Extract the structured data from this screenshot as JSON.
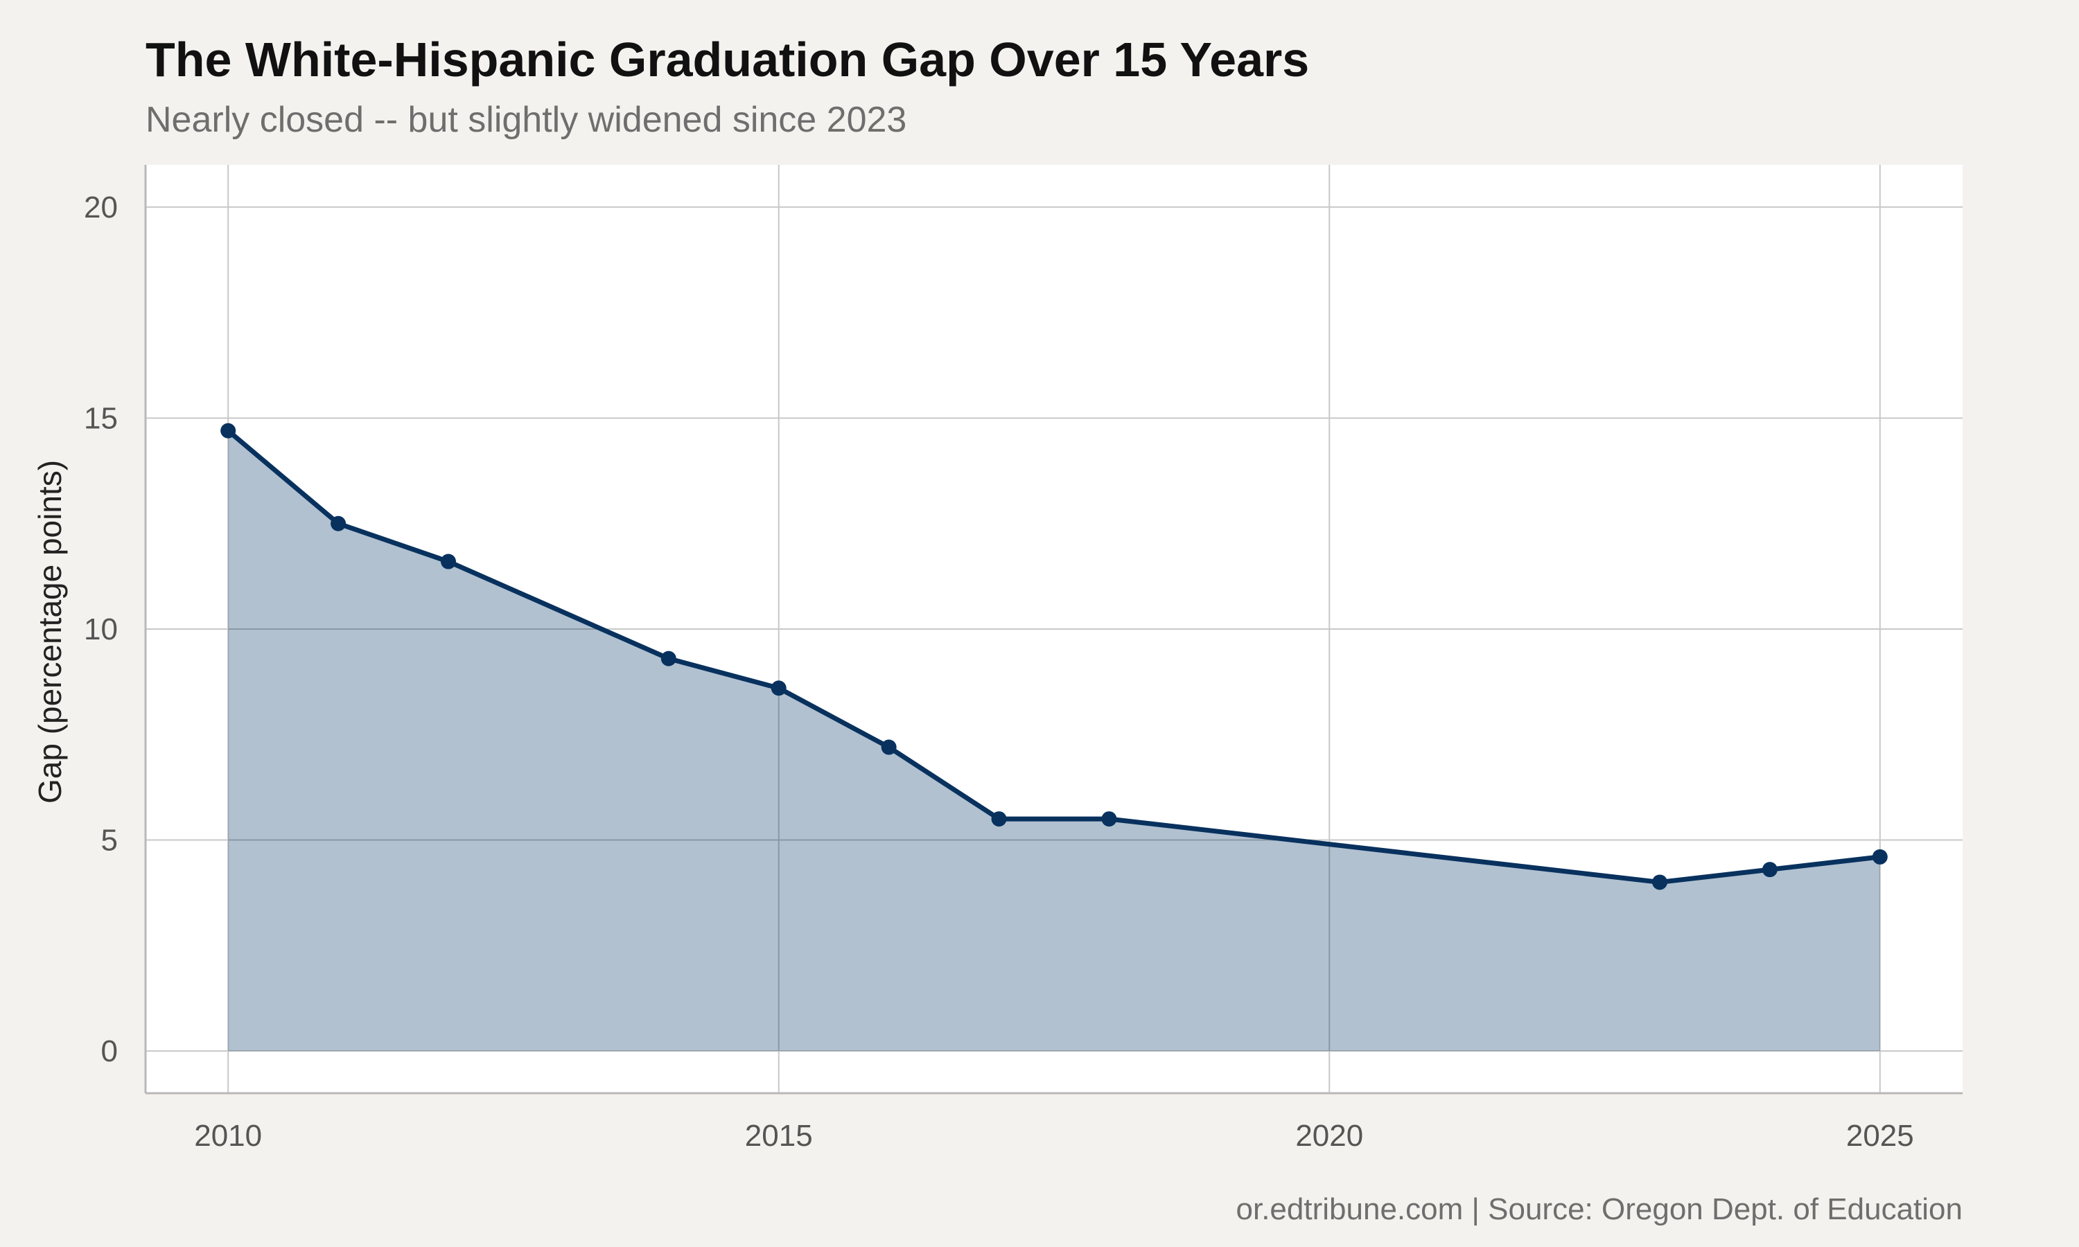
{
  "chart_data": {
    "type": "area",
    "title": "The White-Hispanic Graduation Gap Over 15 Years",
    "subtitle": "Nearly closed -- but slightly widened since 2023",
    "xlabel": "",
    "ylabel": "Gap (percentage points)",
    "caption": "or.edtribune.com | Source: Oregon Dept. of Education",
    "x": [
      2010,
      2011,
      2012,
      2014,
      2015,
      2016,
      2017,
      2018,
      2023,
      2024,
      2025
    ],
    "series": [
      {
        "values": [
          14.7,
          12.5,
          11.6,
          9.3,
          8.6,
          7.2,
          5.5,
          5.5,
          4.0,
          4.3,
          4.6
        ],
        "color": "#08315e",
        "fill_color": "#b1c1d0"
      }
    ],
    "xlim": [
      2009.25,
      2025.75
    ],
    "ylim": [
      -1,
      21
    ],
    "xticks": [
      2010,
      2015,
      2020,
      2025
    ],
    "yticks": [
      0,
      5,
      10,
      15,
      20
    ],
    "xtick_labels": [
      "2010",
      "2015",
      "2020",
      "2025"
    ],
    "ytick_labels": [
      "0",
      "5",
      "10",
      "15",
      "20"
    ],
    "grid": true,
    "legend": "none"
  },
  "colors": {
    "background": "#f4f2ee",
    "panel": "#ffffff",
    "grid": "#c8c8c8",
    "axis_line": "#b8b8b8"
  }
}
